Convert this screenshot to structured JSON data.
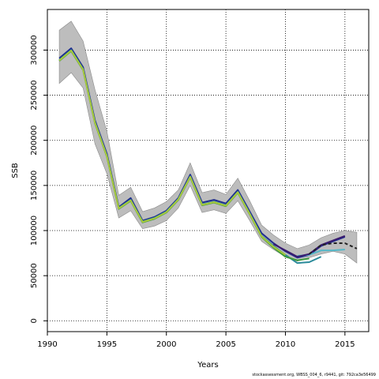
{
  "chart_data": {
    "type": "line",
    "title": "",
    "xlabel": "Years",
    "ylabel": "SSB",
    "xlim": [
      1990,
      2017
    ],
    "ylim": [
      -12000,
      345000
    ],
    "x_ticks": [
      1990,
      1995,
      2000,
      2005,
      2010,
      2015
    ],
    "y_ticks": [
      0,
      50000,
      100000,
      150000,
      200000,
      250000,
      300000
    ],
    "grid": "dotted",
    "band": {
      "x": [
        1991,
        1992,
        1993,
        1994,
        1995,
        1996,
        1997,
        1998,
        1999,
        2000,
        2001,
        2002,
        2003,
        2004,
        2005,
        2006,
        2007,
        2008,
        2009,
        2010,
        2011,
        2012,
        2013,
        2014,
        2015,
        2016
      ],
      "upper": [
        322000,
        332000,
        310000,
        256000,
        210000,
        139000,
        148000,
        121000,
        125000,
        132000,
        145000,
        175000,
        142000,
        145000,
        140000,
        158000,
        133000,
        106000,
        95000,
        86000,
        80000,
        84000,
        92000,
        97000,
        100000,
        98000
      ],
      "lower": [
        263000,
        275000,
        258000,
        196000,
        163000,
        114000,
        122000,
        102000,
        105000,
        111000,
        125000,
        150000,
        120000,
        123000,
        119000,
        133000,
        111000,
        88000,
        79000,
        71000,
        66000,
        70000,
        74000,
        77000,
        74000,
        64000
      ]
    },
    "series": [
      {
        "color": "#1f2d8f",
        "dashed": false,
        "x": [
          1991,
          1992,
          1993,
          1994,
          1995,
          1996,
          1997,
          1998,
          1999,
          2000,
          2001,
          2002,
          2003,
          2004,
          2005,
          2006,
          2007,
          2008,
          2009,
          2010,
          2011,
          2012,
          2013,
          2014,
          2015
        ],
        "values": [
          291000,
          302000,
          281000,
          222000,
          185000,
          126000,
          136000,
          111000,
          115000,
          122000,
          136000,
          162000,
          131000,
          134000,
          130000,
          145000,
          121000,
          97000,
          86000,
          77000,
          70000,
          73000,
          83000,
          88000,
          93000
        ]
      },
      {
        "color": "#2a8a9a",
        "dashed": false,
        "x": [
          1991,
          1992,
          1993,
          1994,
          1995,
          1996,
          1997,
          1998,
          1999,
          2000,
          2001,
          2002,
          2003,
          2004,
          2005,
          2006,
          2007,
          2008,
          2009,
          2010,
          2011,
          2012,
          2013
        ],
        "values": [
          289000,
          300000,
          279000,
          220000,
          183000,
          125000,
          134000,
          110000,
          114000,
          121000,
          135000,
          160000,
          129000,
          132000,
          128000,
          143000,
          119000,
          94000,
          83000,
          73000,
          64000,
          65000,
          71000
        ]
      },
      {
        "color": "#55b8c8",
        "dashed": false,
        "x": [
          2011,
          2012,
          2013,
          2014,
          2015
        ],
        "values": [
          72000,
          73000,
          78000,
          78000,
          79000
        ]
      },
      {
        "color": "#3c9a3c",
        "dashed": false,
        "x": [
          1991,
          1992,
          1993,
          1994,
          1995,
          1996,
          1997,
          1998,
          1999,
          2000,
          2001,
          2002,
          2003,
          2004,
          2005,
          2006,
          2007,
          2008,
          2009,
          2010,
          2011,
          2012
        ],
        "values": [
          288000,
          299000,
          278000,
          219000,
          182000,
          124000,
          133000,
          109000,
          113000,
          120000,
          134000,
          159000,
          128000,
          131000,
          127000,
          142000,
          118000,
          93000,
          81000,
          71000,
          67000,
          69000
        ]
      },
      {
        "color": "#a9c93a",
        "dashed": false,
        "x": [
          1991,
          1992,
          1993,
          1994,
          1995,
          1996,
          1997,
          1998,
          1999,
          2000,
          2001,
          2002,
          2003,
          2004,
          2005,
          2006,
          2007,
          2008,
          2009,
          2010
        ],
        "values": [
          288500,
          299500,
          278500,
          219500,
          182500,
          124500,
          133500,
          109500,
          113500,
          120500,
          134500,
          159500,
          128500,
          131500,
          127500,
          142500,
          118500,
          93500,
          82000,
          73000
        ]
      },
      {
        "color": "#3a1a6e",
        "dashed": false,
        "x": [
          2009,
          2010,
          2011,
          2012,
          2013,
          2014,
          2015
        ],
        "values": [
          85000,
          78000,
          71000,
          74000,
          84000,
          89000,
          94000
        ]
      },
      {
        "color": "#222222",
        "dashed": true,
        "x": [
          2012,
          2013,
          2014,
          2015,
          2016
        ],
        "values": [
          74000,
          84000,
          86000,
          86000,
          80000
        ]
      }
    ]
  },
  "footer": "stockassessment.org, WBSS_004_6, r9441, git: 792ca3e56499"
}
